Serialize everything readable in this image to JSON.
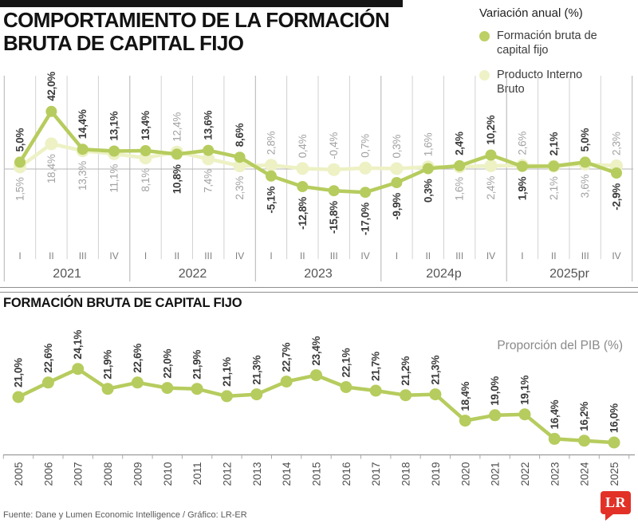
{
  "header": {
    "title_line1": "COMPORTAMIENTO DE LA FORMACIÓN",
    "title_line2": "BRUTA DE CAPITAL FIJO",
    "legend_title": "Variación anual (%)",
    "legend_items": [
      {
        "label": "Formación bruta de capital fijo",
        "color": "#bdd065"
      },
      {
        "label": "Producto Interno Bruto",
        "color": "#eef2c6"
      }
    ]
  },
  "section2": {
    "title": "FORMACIÓN BRUTA DE CAPITAL FIJO",
    "right_label": "Proporción del PIB (%)"
  },
  "footer": {
    "source": "Fuente: Dane y Lumen Economic Intelligence / Gráfico: LR-ER",
    "logo_text": "LR",
    "logo_color": "#e23127"
  },
  "chart_data": [
    {
      "type": "line",
      "title": "Variación anual (%)",
      "categories": [
        "I",
        "II",
        "III",
        "IV",
        "I",
        "II",
        "III",
        "IV",
        "I",
        "II",
        "III",
        "IV",
        "I",
        "II",
        "III",
        "IV",
        "I",
        "II",
        "III",
        "IV"
      ],
      "year_groups": [
        "2021",
        "2022",
        "2023",
        "2024p",
        "2025pr"
      ],
      "series": [
        {
          "name": "Formación bruta de capital fijo",
          "color": "#b6cc5e",
          "values": [
            5.0,
            42.0,
            14.4,
            13.1,
            13.4,
            10.8,
            13.6,
            8.6,
            -5.1,
            -12.8,
            -15.8,
            -17.0,
            -9.9,
            0.3,
            2.4,
            10.2,
            1.9,
            2.1,
            5.0,
            -2.9
          ]
        },
        {
          "name": "Producto Interno Bruto",
          "color": "#edf1c4",
          "values": [
            1.5,
            18.4,
            13.3,
            11.1,
            8.1,
            12.4,
            7.4,
            2.3,
            2.8,
            0.4,
            -0.4,
            0.7,
            0.3,
            1.6,
            1.6,
            2.4,
            2.6,
            2.1,
            3.6,
            2.3
          ]
        }
      ],
      "ylim": [
        -20,
        45
      ],
      "grid": "vertical-between-categories",
      "legend_position": "top-right",
      "value_label_format": "decimal-comma-percent"
    },
    {
      "type": "line",
      "title": "Proporción del PIB (%)",
      "categories": [
        "2005",
        "2006",
        "2007",
        "2008",
        "2009",
        "2010",
        "2011",
        "2012",
        "2013",
        "2014",
        "2015",
        "2016",
        "2017",
        "2018",
        "2019",
        "2020",
        "2021",
        "2022",
        "2023",
        "2024",
        "2025"
      ],
      "values": [
        21.0,
        22.6,
        24.1,
        21.9,
        22.6,
        22.0,
        21.9,
        21.1,
        21.3,
        22.7,
        23.4,
        22.1,
        21.7,
        21.2,
        21.3,
        18.4,
        19.0,
        19.1,
        16.4,
        16.2,
        16.0
      ],
      "series_color": "#b6cc5e",
      "ylim": [
        14,
        26
      ],
      "grid": "off",
      "legend_position": "none",
      "value_label_format": "decimal-comma-percent"
    }
  ]
}
